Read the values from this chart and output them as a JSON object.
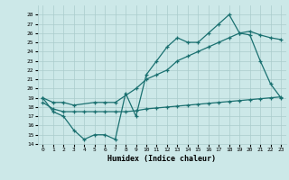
{
  "xlabel": "Humidex (Indice chaleur)",
  "ylabel": "",
  "bg_color": "#cce8e8",
  "grid_color": "#aacccc",
  "line_color": "#1a7070",
  "xlim": [
    -0.5,
    23.5
  ],
  "ylim": [
    14,
    29
  ],
  "yticks": [
    14,
    15,
    16,
    17,
    18,
    19,
    20,
    21,
    22,
    23,
    24,
    25,
    26,
    27,
    28
  ],
  "xticks": [
    0,
    1,
    2,
    3,
    4,
    5,
    6,
    7,
    8,
    9,
    10,
    11,
    12,
    13,
    14,
    15,
    16,
    17,
    18,
    19,
    20,
    21,
    22,
    23
  ],
  "line1_x": [
    0,
    1,
    2,
    3,
    4,
    5,
    6,
    7,
    8,
    9,
    10,
    11,
    12,
    13,
    14,
    15,
    16,
    17,
    18,
    19,
    20,
    21,
    22,
    23
  ],
  "line1_y": [
    19,
    17.5,
    17,
    15.5,
    14.5,
    15,
    15,
    14.5,
    19.5,
    17,
    21.5,
    23,
    24.5,
    25.5,
    25,
    25,
    26,
    27,
    28,
    26,
    25.8,
    23,
    20.5,
    19
  ],
  "line2_x": [
    0,
    1,
    2,
    3,
    5,
    6,
    7,
    9,
    10,
    11,
    12,
    13,
    14,
    15,
    16,
    17,
    18,
    19,
    20,
    21,
    22,
    23
  ],
  "line2_y": [
    19,
    18.5,
    18.5,
    18.2,
    18.5,
    18.5,
    18.5,
    20,
    21,
    21.5,
    22,
    23,
    23.5,
    24,
    24.5,
    25,
    25.5,
    26,
    26.2,
    25.8,
    25.5,
    25.3
  ],
  "line3_x": [
    0,
    1,
    2,
    3,
    4,
    5,
    6,
    7,
    8,
    9,
    10,
    11,
    12,
    13,
    14,
    15,
    16,
    17,
    18,
    19,
    20,
    21,
    22,
    23
  ],
  "line3_y": [
    18.5,
    17.8,
    17.5,
    17.5,
    17.5,
    17.5,
    17.5,
    17.5,
    17.5,
    17.6,
    17.8,
    17.9,
    18.0,
    18.1,
    18.2,
    18.3,
    18.4,
    18.5,
    18.6,
    18.7,
    18.8,
    18.9,
    19.0,
    19.1
  ]
}
